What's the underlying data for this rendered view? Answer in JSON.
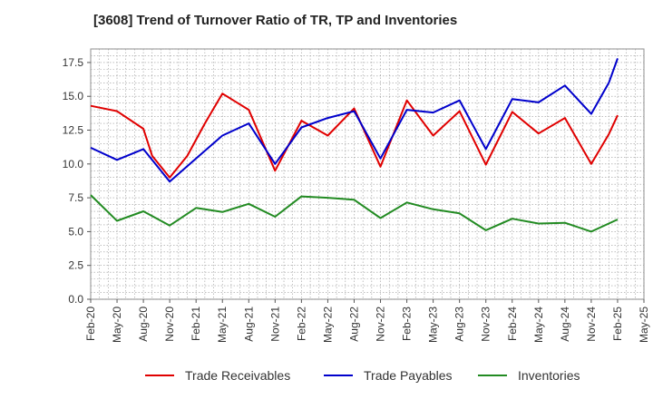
{
  "chart_data": {
    "type": "line",
    "title": "[3608]  Trend of Turnover Ratio of TR, TP and Inventories",
    "xlabel": "",
    "ylabel": "",
    "ylim": [
      0,
      18.5
    ],
    "yticks": [
      "0.0",
      "2.5",
      "5.0",
      "7.5",
      "10.0",
      "12.5",
      "15.0",
      "17.5"
    ],
    "ytick_values": [
      0,
      2.5,
      5,
      7.5,
      10,
      12.5,
      15,
      17.5
    ],
    "x_tick_labels": [
      "Feb-20",
      "May-20",
      "Aug-20",
      "Nov-20",
      "Feb-21",
      "May-21",
      "Aug-21",
      "Nov-21",
      "Feb-22",
      "May-22",
      "Aug-22",
      "Nov-22",
      "Feb-23",
      "May-23",
      "Aug-23",
      "Nov-23",
      "Feb-24",
      "May-24",
      "Aug-24",
      "Nov-24",
      "Feb-25",
      "May-25"
    ],
    "x_months": 61,
    "grid": true,
    "legend_position": "bottom",
    "series": [
      {
        "name": "Trade Receivables",
        "color": "#e00000",
        "points": [
          [
            0,
            14.3
          ],
          [
            3,
            13.9
          ],
          [
            6,
            12.6
          ],
          [
            7,
            10.6
          ],
          [
            9,
            9.0
          ],
          [
            11,
            10.6
          ],
          [
            13,
            13.0
          ],
          [
            15,
            15.2
          ],
          [
            18,
            14.0
          ],
          [
            21,
            9.5
          ],
          [
            24,
            13.2
          ],
          [
            27,
            12.1
          ],
          [
            30,
            14.1
          ],
          [
            33,
            9.8
          ],
          [
            36,
            14.7
          ],
          [
            39,
            12.1
          ],
          [
            42,
            13.9
          ],
          [
            45,
            9.95
          ],
          [
            48,
            13.85
          ],
          [
            51,
            12.25
          ],
          [
            54,
            13.4
          ],
          [
            57,
            10.0
          ],
          [
            59,
            12.2
          ],
          [
            60,
            13.6
          ]
        ]
      },
      {
        "name": "Trade Payables",
        "color": "#0000cc",
        "points": [
          [
            0,
            11.2
          ],
          [
            3,
            10.3
          ],
          [
            6,
            11.1
          ],
          [
            9,
            8.7
          ],
          [
            12,
            10.4
          ],
          [
            15,
            12.1
          ],
          [
            18,
            13.0
          ],
          [
            21,
            10.0
          ],
          [
            24,
            12.7
          ],
          [
            27,
            13.4
          ],
          [
            30,
            13.9
          ],
          [
            33,
            10.4
          ],
          [
            36,
            14.0
          ],
          [
            39,
            13.8
          ],
          [
            42,
            14.7
          ],
          [
            45,
            11.1
          ],
          [
            48,
            14.8
          ],
          [
            51,
            14.55
          ],
          [
            54,
            15.8
          ],
          [
            57,
            13.7
          ],
          [
            59,
            16.0
          ],
          [
            60,
            17.8
          ]
        ]
      },
      {
        "name": "Inventories",
        "color": "#228b22",
        "points": [
          [
            0,
            7.7
          ],
          [
            3,
            5.8
          ],
          [
            6,
            6.5
          ],
          [
            9,
            5.45
          ],
          [
            12,
            6.75
          ],
          [
            15,
            6.45
          ],
          [
            18,
            7.05
          ],
          [
            21,
            6.1
          ],
          [
            24,
            7.6
          ],
          [
            27,
            7.5
          ],
          [
            30,
            7.35
          ],
          [
            33,
            6.0
          ],
          [
            36,
            7.15
          ],
          [
            39,
            6.65
          ],
          [
            42,
            6.35
          ],
          [
            45,
            5.1
          ],
          [
            48,
            5.95
          ],
          [
            51,
            5.6
          ],
          [
            54,
            5.65
          ],
          [
            57,
            5.0
          ],
          [
            60,
            5.9
          ]
        ]
      }
    ]
  }
}
